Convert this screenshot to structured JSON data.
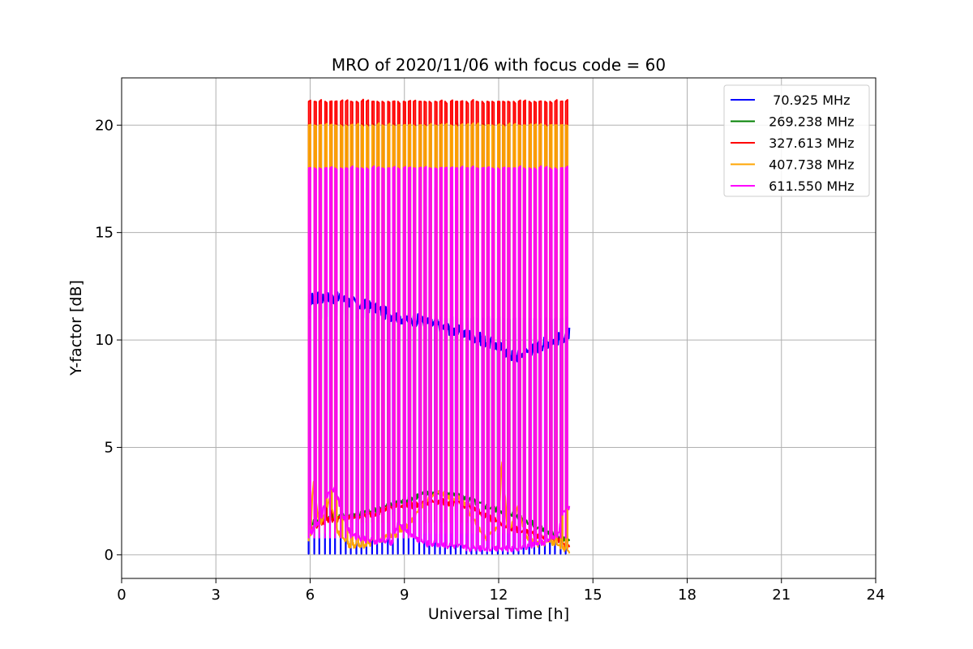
{
  "chart_data": {
    "type": "line",
    "title": "MRO of 2020/11/06 with focus code = 60",
    "xlabel": "Universal Time [h]",
    "ylabel": "Y-factor [dB]",
    "xlim": [
      0,
      24
    ],
    "ylim": [
      -1.1,
      22.2
    ],
    "xticks": [
      0,
      3,
      6,
      9,
      12,
      15,
      18,
      21,
      24
    ],
    "yticks": [
      0,
      5,
      10,
      15,
      20
    ],
    "grid": true,
    "legend_position": "top-right",
    "period_minutes": 10,
    "pulse_width_hours": 0.06,
    "x_range_data": [
      5.95,
      14.25
    ],
    "series": [
      {
        "name": "  70.925 MHz",
        "color": "#0000ff",
        "baseline": [
          [
            6.0,
            11.9
          ],
          [
            6.5,
            12.0
          ],
          [
            7.0,
            11.9
          ],
          [
            7.5,
            11.7
          ],
          [
            8.0,
            11.5
          ],
          [
            8.5,
            11.2
          ],
          [
            9.0,
            11.0
          ],
          [
            9.5,
            10.9
          ],
          [
            10.0,
            10.7
          ],
          [
            10.5,
            10.5
          ],
          [
            11.0,
            10.3
          ],
          [
            11.5,
            10.0
          ],
          [
            12.0,
            9.7
          ],
          [
            12.5,
            9.2
          ],
          [
            13.0,
            9.5
          ],
          [
            13.5,
            9.9
          ],
          [
            14.0,
            10.1
          ],
          [
            14.2,
            10.3
          ]
        ],
        "pulse_high": 11.0,
        "pulse_low": 0.05
      },
      {
        "name": " 269.238 MHz",
        "color": "#008000",
        "baseline": [
          [
            6.0,
            1.5
          ],
          [
            6.5,
            1.7
          ],
          [
            7.0,
            1.8
          ],
          [
            7.5,
            1.9
          ],
          [
            8.0,
            2.0
          ],
          [
            8.5,
            2.3
          ],
          [
            9.0,
            2.5
          ],
          [
            9.5,
            2.8
          ],
          [
            10.0,
            2.9
          ],
          [
            10.5,
            2.8
          ],
          [
            11.0,
            2.6
          ],
          [
            11.5,
            2.3
          ],
          [
            12.0,
            2.1
          ],
          [
            12.5,
            1.9
          ],
          [
            13.0,
            1.5
          ],
          [
            13.5,
            1.1
          ],
          [
            14.0,
            0.8
          ],
          [
            14.2,
            0.6
          ]
        ],
        "pulse_high": 20.0,
        "pulse_low": 1.5
      },
      {
        "name": " 327.613 MHz",
        "color": "#ff0000",
        "baseline": [
          [
            6.0,
            1.2
          ],
          [
            6.5,
            1.6
          ],
          [
            7.0,
            1.7
          ],
          [
            7.5,
            1.8
          ],
          [
            8.0,
            1.9
          ],
          [
            8.5,
            2.2
          ],
          [
            9.0,
            2.3
          ],
          [
            9.5,
            2.3
          ],
          [
            10.0,
            2.5
          ],
          [
            10.5,
            2.4
          ],
          [
            11.0,
            2.3
          ],
          [
            11.5,
            1.9
          ],
          [
            12.0,
            1.5
          ],
          [
            12.5,
            1.2
          ],
          [
            13.0,
            1.0
          ],
          [
            13.5,
            0.8
          ],
          [
            14.0,
            0.6
          ],
          [
            14.2,
            0.4
          ]
        ],
        "pulse_high": 21.1,
        "pulse_low": 1.5
      },
      {
        "name": " 407.738 MHz",
        "color": "#ffa500",
        "baseline": [
          [
            6.0,
            0.6
          ],
          [
            6.1,
            3.5
          ],
          [
            6.3,
            1.2
          ],
          [
            6.6,
            2.6
          ],
          [
            6.9,
            1.0
          ],
          [
            7.2,
            0.5
          ],
          [
            7.6,
            0.4
          ],
          [
            8.0,
            0.6
          ],
          [
            8.4,
            0.8
          ],
          [
            8.8,
            1.0
          ],
          [
            9.2,
            1.5
          ],
          [
            9.6,
            2.3
          ],
          [
            10.0,
            2.9
          ],
          [
            10.4,
            2.7
          ],
          [
            10.8,
            2.6
          ],
          [
            11.2,
            1.6
          ],
          [
            11.6,
            0.8
          ],
          [
            12.0,
            1.3
          ],
          [
            12.1,
            4.4
          ],
          [
            12.3,
            1.0
          ],
          [
            12.6,
            2.2
          ],
          [
            12.9,
            0.8
          ],
          [
            13.2,
            0.5
          ],
          [
            13.6,
            0.6
          ],
          [
            14.0,
            0.4
          ],
          [
            14.2,
            0.2
          ]
        ],
        "pulse_high": 20.0,
        "pulse_low": 1.0
      },
      {
        "name": " 611.550 MHz",
        "color": "#ff00ff",
        "baseline": [
          [
            6.0,
            1.0
          ],
          [
            6.3,
            1.5
          ],
          [
            6.6,
            3.0
          ],
          [
            6.8,
            3.1
          ],
          [
            7.0,
            2.0
          ],
          [
            7.3,
            0.9
          ],
          [
            7.8,
            0.7
          ],
          [
            8.3,
            0.6
          ],
          [
            8.6,
            0.6
          ],
          [
            8.8,
            1.5
          ],
          [
            9.0,
            1.2
          ],
          [
            9.3,
            0.8
          ],
          [
            9.7,
            0.5
          ],
          [
            10.0,
            0.5
          ],
          [
            10.5,
            0.4
          ],
          [
            11.0,
            0.3
          ],
          [
            11.5,
            0.3
          ],
          [
            12.0,
            0.3
          ],
          [
            12.5,
            0.3
          ],
          [
            13.0,
            0.4
          ],
          [
            13.5,
            0.6
          ],
          [
            13.9,
            0.9
          ],
          [
            14.0,
            1.8
          ],
          [
            14.2,
            2.2
          ]
        ],
        "pulse_high": 18.0,
        "pulse_low": 0.8
      }
    ]
  }
}
